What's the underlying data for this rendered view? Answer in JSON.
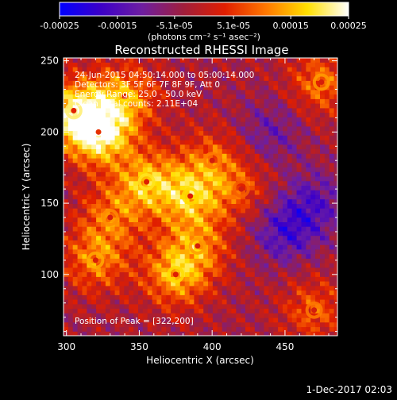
{
  "chart_data": {
    "type": "heatmap",
    "title": "Reconstructed RHESSI Image",
    "xlabel": "Heliocentric X (arcsec)",
    "ylabel": "Heliocentric Y (arcsec)",
    "xlim": [
      298,
      486
    ],
    "ylim": [
      57,
      252
    ],
    "xticks": [
      300,
      350,
      400,
      450
    ],
    "yticks": [
      100,
      150,
      200,
      250
    ],
    "colorbar": {
      "title": "(photons cm⁻² s⁻¹ asec⁻²)",
      "range": [
        -0.00025,
        0.00025
      ],
      "ticks": [
        {
          "value": -0.00025,
          "label": "-0.00025"
        },
        {
          "value": -0.00015,
          "label": "-0.00015"
        },
        {
          "value": -5.1e-05,
          "label": "-5.1e-05"
        },
        {
          "value": 5.1e-05,
          "label": "5.1e-05"
        },
        {
          "value": 0.00015,
          "label": "0.00015"
        },
        {
          "value": 0.00025,
          "label": "0.00025"
        }
      ],
      "colors": [
        "#0000ff",
        "#3c00c8",
        "#6e1ea0",
        "#a01e3c",
        "#e01e00",
        "#ff7800",
        "#ffe000",
        "#ffffff"
      ]
    },
    "annotations": [
      "24-Jun-2015 04:50:14.000 to 05:00:14.000",
      "Detectors: 3F 5F 6F 7F 8F 9F, Att 0",
      "Energy Range: 25.0 - 50.0 keV",
      "Clean    Total counts: 2.11E+04",
      "Position of Peak = [322,200]"
    ],
    "peak": {
      "x": 322,
      "y": 200
    },
    "features": [
      {
        "x": 322,
        "y": 200,
        "intensity": 0.00025
      },
      {
        "x": 305,
        "y": 215,
        "intensity": 0.00019
      },
      {
        "x": 340,
        "y": 225,
        "intensity": 0.00015
      },
      {
        "x": 355,
        "y": 165,
        "intensity": 0.00017
      },
      {
        "x": 385,
        "y": 155,
        "intensity": 0.00016
      },
      {
        "x": 375,
        "y": 100,
        "intensity": 0.00016
      },
      {
        "x": 390,
        "y": 120,
        "intensity": 0.00012
      },
      {
        "x": 320,
        "y": 110,
        "intensity": 0.00013
      },
      {
        "x": 330,
        "y": 140,
        "intensity": 0.00011
      },
      {
        "x": 400,
        "y": 180,
        "intensity": 0.0001
      },
      {
        "x": 475,
        "y": 235,
        "intensity": 0.00012
      },
      {
        "x": 470,
        "y": 75,
        "intensity": 0.0001
      },
      {
        "x": 420,
        "y": 160,
        "intensity": 8e-05
      },
      {
        "x": 450,
        "y": 130,
        "intensity": -0.00012
      },
      {
        "x": 440,
        "y": 200,
        "intensity": -8e-05
      },
      {
        "x": 470,
        "y": 150,
        "intensity": -0.0001
      }
    ]
  },
  "footer": {
    "date": "1-Dec-2017 02:03"
  }
}
